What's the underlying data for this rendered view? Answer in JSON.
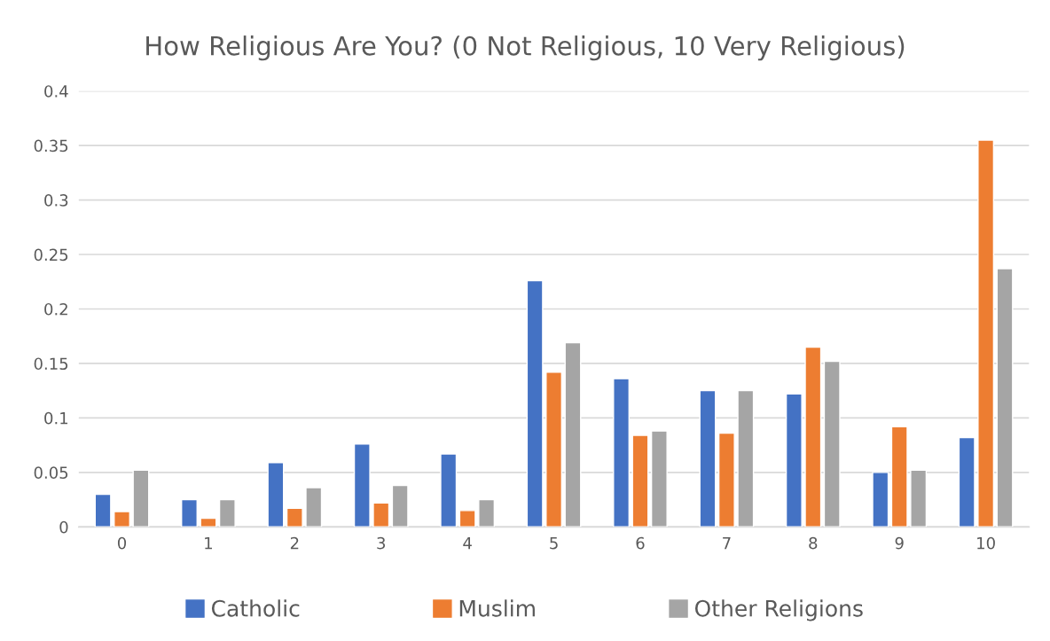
{
  "chart_data": {
    "type": "bar",
    "title": "How Religious Are You? (0 Not Religious, 10 Very Religious)",
    "categories": [
      "0",
      "1",
      "2",
      "3",
      "4",
      "5",
      "6",
      "7",
      "8",
      "9",
      "10"
    ],
    "series": [
      {
        "name": "Catholic",
        "color": "#4472c4",
        "values": [
          0.03,
          0.025,
          0.059,
          0.076,
          0.067,
          0.226,
          0.136,
          0.125,
          0.122,
          0.05,
          0.082
        ]
      },
      {
        "name": "Muslim",
        "color": "#ed7d31",
        "values": [
          0.014,
          0.008,
          0.017,
          0.022,
          0.015,
          0.142,
          0.084,
          0.086,
          0.165,
          0.092,
          0.355
        ]
      },
      {
        "name": "Other Religions",
        "color": "#a5a5a5",
        "values": [
          0.052,
          0.025,
          0.036,
          0.038,
          0.025,
          0.169,
          0.088,
          0.125,
          0.152,
          0.052,
          0.237
        ]
      }
    ],
    "ylim": [
      0,
      0.4
    ],
    "yticks": [
      0,
      0.05,
      0.1,
      0.15,
      0.2,
      0.25,
      0.3,
      0.35,
      0.4
    ],
    "grid": "y",
    "legend": "bottom"
  }
}
